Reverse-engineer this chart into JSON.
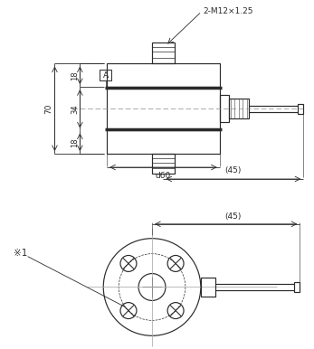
{
  "bg_color": "#ffffff",
  "line_color": "#2a2a2a",
  "dim_color": "#2a2a2a",
  "ann_2M12": "2-M12×1.25",
  "ann_A": "A",
  "dim_18": "18",
  "dim_34": "34",
  "dim_70": "70",
  "dim_phi60": "d60",
  "dim_45": "(45)",
  "note1": "※1"
}
